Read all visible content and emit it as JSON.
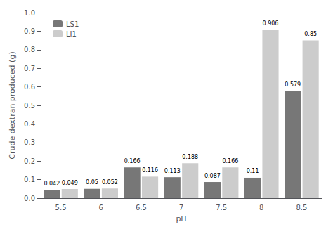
{
  "chart_data": {
    "type": "bar",
    "categories": [
      "5.5",
      "6",
      "6.5",
      "7",
      "7.5",
      "8",
      "8.5"
    ],
    "series": [
      {
        "name": "LS1",
        "color": "#777777",
        "values": [
          0.042,
          0.05,
          0.166,
          0.113,
          0.087,
          0.11,
          0.579
        ]
      },
      {
        "name": "LI1",
        "color": "#cccccc",
        "values": [
          0.049,
          0.052,
          0.116,
          0.188,
          0.166,
          0.906,
          0.85
        ]
      }
    ],
    "xlabel": "pH",
    "ylabel": "Crude dextran produced (g)",
    "ylim": [
      0,
      1.0
    ],
    "yticks": [
      {
        "value": 0.0,
        "label": "0.0"
      },
      0.1,
      0.2,
      0.3,
      0.4,
      0.5,
      0.6,
      0.7,
      0.8,
      0.9,
      {
        "value": 1.0,
        "label": "1.0"
      }
    ],
    "data_labels": true,
    "legend": "upper left",
    "grid": false
  }
}
